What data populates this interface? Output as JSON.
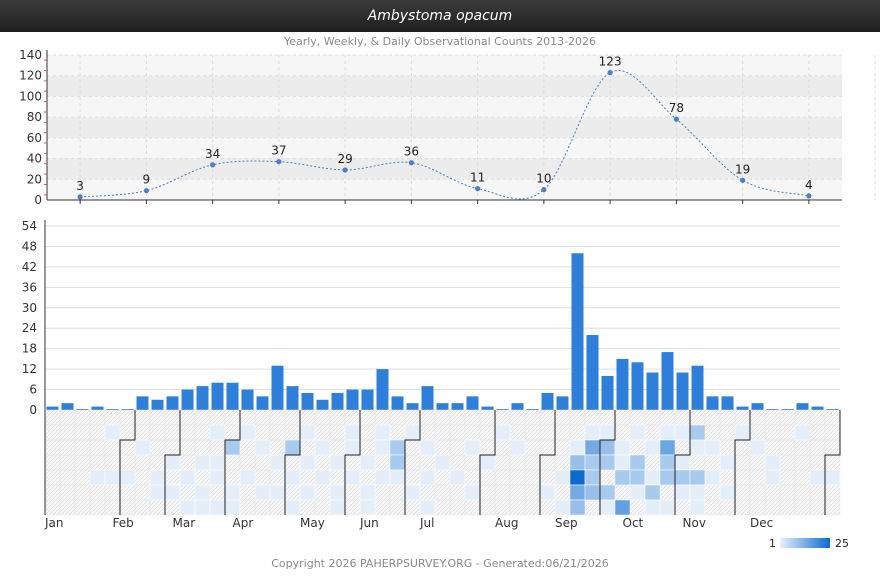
{
  "title": "Ambystoma opacum",
  "subtitle": "Yearly, Weekly, & Daily Observational Counts 2013-2026",
  "footer": "Copyright 2026 PAHERPSURVEY.ORG - Generated:06/21/2026",
  "colors": {
    "primary": "#2e7fd9",
    "line": "#4a7fc9",
    "heat_low": "#e4eef9",
    "heat_high": "#0a6ad0"
  },
  "chart_data": [
    {
      "type": "line",
      "title": "Monthly totals",
      "ylim": [
        0,
        140
      ],
      "yticks": [
        0,
        20,
        40,
        60,
        80,
        100,
        120,
        140
      ],
      "categories": [
        "Jan",
        "Feb",
        "Mar",
        "Apr",
        "May",
        "Jun",
        "Jul",
        "Aug",
        "Sep",
        "Oct",
        "Nov",
        "Dec"
      ],
      "values": [
        3,
        9,
        34,
        37,
        29,
        36,
        11,
        10,
        123,
        78,
        19,
        4
      ]
    },
    {
      "type": "bar",
      "title": "Weekly totals",
      "ylim": [
        0,
        54
      ],
      "yticks": [
        0,
        6,
        12,
        18,
        24,
        30,
        36,
        42,
        48,
        54
      ],
      "values": [
        1,
        2,
        0,
        1,
        0,
        0,
        4,
        3,
        4,
        6,
        7,
        8,
        8,
        6,
        4,
        13,
        7,
        5,
        3,
        5,
        6,
        6,
        12,
        4,
        2,
        7,
        2,
        2,
        4,
        1,
        0,
        2,
        0,
        5,
        4,
        46,
        22,
        10,
        15,
        14,
        11,
        17,
        11,
        13,
        4,
        4,
        1,
        2,
        0,
        0,
        2,
        1,
        0
      ]
    },
    {
      "type": "heatmap",
      "title": "Daily counts",
      "legend": {
        "min": "1",
        "max": "25"
      },
      "month_labels": [
        "Jan",
        "Feb",
        "Mar",
        "Apr",
        "May",
        "Jun",
        "Jul",
        "Aug",
        "Sep",
        "Oct",
        "Nov",
        "Dec"
      ],
      "cells": [
        [
          3,
          3,
          1
        ],
        [
          4,
          0,
          1
        ],
        [
          4,
          3,
          1
        ],
        [
          5,
          3,
          1
        ],
        [
          6,
          1,
          1
        ],
        [
          7,
          3,
          1
        ],
        [
          7,
          4,
          1
        ],
        [
          8,
          2,
          1
        ],
        [
          8,
          4,
          1
        ],
        [
          9,
          3,
          1
        ],
        [
          9,
          5,
          1
        ],
        [
          10,
          2,
          1
        ],
        [
          10,
          4,
          1
        ],
        [
          10,
          5,
          1
        ],
        [
          11,
          0,
          1
        ],
        [
          11,
          2,
          1
        ],
        [
          11,
          3,
          1
        ],
        [
          11,
          5,
          1
        ],
        [
          12,
          1,
          2
        ],
        [
          12,
          4,
          1
        ],
        [
          12,
          5,
          1
        ],
        [
          13,
          0,
          1
        ],
        [
          13,
          3,
          1
        ],
        [
          14,
          1,
          1
        ],
        [
          14,
          4,
          1
        ],
        [
          15,
          2,
          1
        ],
        [
          15,
          4,
          1
        ],
        [
          16,
          1,
          2
        ],
        [
          16,
          3,
          1
        ],
        [
          16,
          5,
          1
        ],
        [
          17,
          0,
          1
        ],
        [
          17,
          2,
          1
        ],
        [
          17,
          4,
          1
        ],
        [
          18,
          1,
          1
        ],
        [
          18,
          3,
          1
        ],
        [
          19,
          2,
          1
        ],
        [
          19,
          4,
          1
        ],
        [
          19,
          5,
          1
        ],
        [
          20,
          0,
          1
        ],
        [
          20,
          1,
          1
        ],
        [
          20,
          3,
          1
        ],
        [
          21,
          2,
          1
        ],
        [
          21,
          4,
          1
        ],
        [
          21,
          5,
          1
        ],
        [
          22,
          0,
          1
        ],
        [
          22,
          1,
          1
        ],
        [
          22,
          3,
          1
        ],
        [
          23,
          1,
          2
        ],
        [
          23,
          2,
          2
        ],
        [
          23,
          3,
          1
        ],
        [
          24,
          0,
          1
        ],
        [
          24,
          4,
          1
        ],
        [
          25,
          1,
          1
        ],
        [
          25,
          3,
          1
        ],
        [
          25,
          5,
          1
        ],
        [
          26,
          2,
          1
        ],
        [
          27,
          3,
          1
        ],
        [
          28,
          1,
          1
        ],
        [
          28,
          4,
          1
        ],
        [
          29,
          2,
          1
        ],
        [
          30,
          0,
          1
        ],
        [
          31,
          1,
          1
        ],
        [
          33,
          4,
          1
        ],
        [
          34,
          3,
          1
        ],
        [
          34,
          5,
          1
        ],
        [
          35,
          1,
          1
        ],
        [
          35,
          2,
          3
        ],
        [
          35,
          3,
          25
        ],
        [
          35,
          4,
          6
        ],
        [
          35,
          5,
          3
        ],
        [
          36,
          0,
          1
        ],
        [
          36,
          1,
          6
        ],
        [
          36,
          2,
          2
        ],
        [
          36,
          3,
          2
        ],
        [
          36,
          4,
          3
        ],
        [
          37,
          0,
          1
        ],
        [
          37,
          1,
          3
        ],
        [
          37,
          2,
          2
        ],
        [
          37,
          4,
          2
        ],
        [
          37,
          5,
          1
        ],
        [
          38,
          1,
          1
        ],
        [
          38,
          2,
          1
        ],
        [
          38,
          3,
          2
        ],
        [
          38,
          5,
          8
        ],
        [
          39,
          0,
          1
        ],
        [
          39,
          2,
          2
        ],
        [
          39,
          3,
          2
        ],
        [
          39,
          4,
          1
        ],
        [
          40,
          1,
          1
        ],
        [
          40,
          3,
          1
        ],
        [
          40,
          4,
          2
        ],
        [
          40,
          5,
          1
        ],
        [
          41,
          0,
          1
        ],
        [
          41,
          1,
          7
        ],
        [
          41,
          2,
          2
        ],
        [
          41,
          3,
          2
        ],
        [
          41,
          5,
          1
        ],
        [
          42,
          0,
          1
        ],
        [
          42,
          2,
          1
        ],
        [
          42,
          3,
          2
        ],
        [
          42,
          4,
          1
        ],
        [
          43,
          0,
          2
        ],
        [
          43,
          1,
          1
        ],
        [
          43,
          3,
          2
        ],
        [
          43,
          4,
          1
        ],
        [
          43,
          5,
          1
        ],
        [
          44,
          1,
          1
        ],
        [
          44,
          3,
          1
        ],
        [
          45,
          2,
          1
        ],
        [
          45,
          4,
          1
        ],
        [
          46,
          0,
          1
        ],
        [
          47,
          1,
          1
        ],
        [
          48,
          2,
          1
        ],
        [
          48,
          3,
          1
        ],
        [
          50,
          0,
          1
        ],
        [
          51,
          3,
          1
        ],
        [
          52,
          3,
          1
        ]
      ]
    }
  ]
}
